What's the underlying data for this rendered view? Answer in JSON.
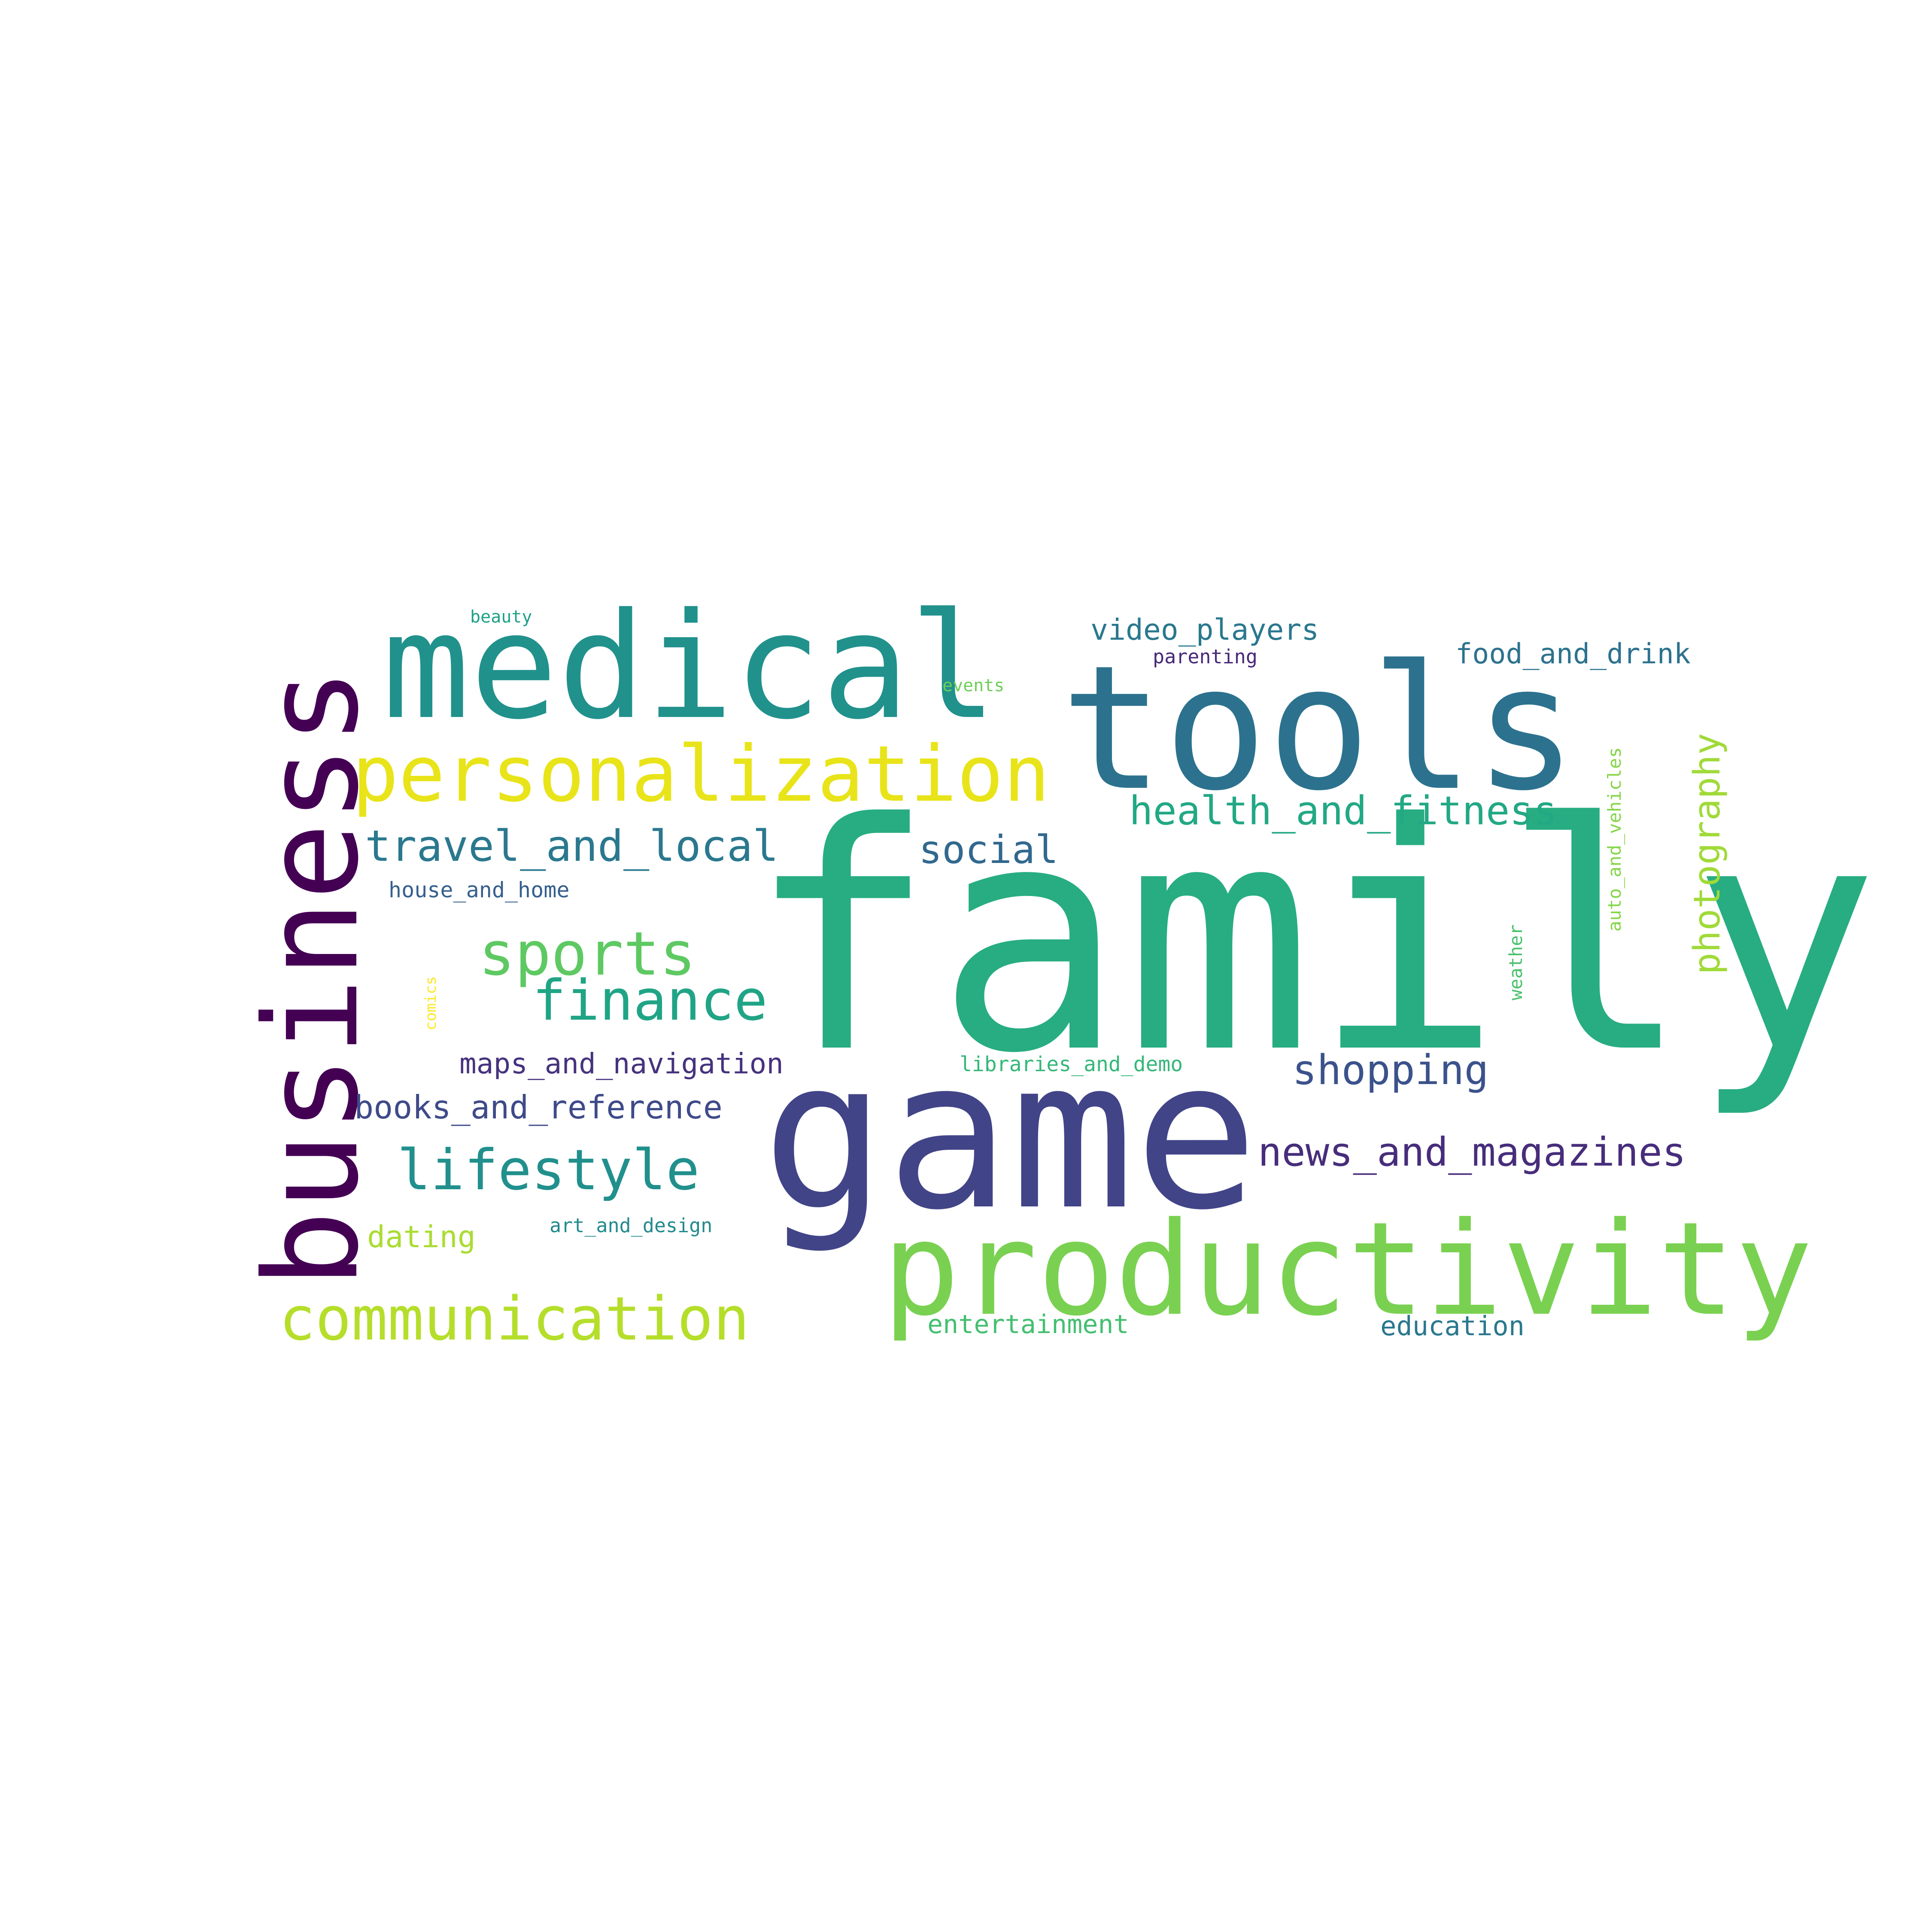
{
  "word_cloud": {
    "words": [
      {
        "text": "family",
        "color": "#27ad81"
      },
      {
        "text": "game",
        "color": "#414487"
      },
      {
        "text": "tools",
        "color": "#2c728e"
      },
      {
        "text": "business",
        "color": "#440154"
      },
      {
        "text": "medical",
        "color": "#21918c"
      },
      {
        "text": "productivity",
        "color": "#7ad151"
      },
      {
        "text": "personalization",
        "color": "#e8e419"
      },
      {
        "text": "communication",
        "color": "#b5de2b"
      },
      {
        "text": "lifestyle",
        "color": "#21908d"
      },
      {
        "text": "sports",
        "color": "#5ec962"
      },
      {
        "text": "finance",
        "color": "#20a486"
      },
      {
        "text": "health_and_fitness",
        "color": "#22a884"
      },
      {
        "text": "travel_and_local",
        "color": "#2a788e"
      },
      {
        "text": "social",
        "color": "#31688e"
      },
      {
        "text": "shopping",
        "color": "#3b528b"
      },
      {
        "text": "news_and_magazines",
        "color": "#472d7b"
      },
      {
        "text": "photography",
        "color": "#a0da39"
      },
      {
        "text": "books_and_reference",
        "color": "#3e4a89"
      },
      {
        "text": "maps_and_navigation",
        "color": "#46327e"
      },
      {
        "text": "video_players",
        "color": "#2a788e"
      },
      {
        "text": "food_and_drink",
        "color": "#2c728e"
      },
      {
        "text": "dating",
        "color": "#aadc32"
      },
      {
        "text": "house_and_home",
        "color": "#355f8d"
      },
      {
        "text": "entertainment",
        "color": "#44bf70"
      },
      {
        "text": "education",
        "color": "#2a788e"
      },
      {
        "text": "art_and_design",
        "color": "#238a8d"
      },
      {
        "text": "auto_and_vehicles",
        "color": "#86d549"
      },
      {
        "text": "libraries_and_demo",
        "color": "#35b779"
      },
      {
        "text": "weather",
        "color": "#4ac16d"
      },
      {
        "text": "parenting",
        "color": "#482878"
      },
      {
        "text": "beauty",
        "color": "#1fa187"
      },
      {
        "text": "events",
        "color": "#6ece58"
      },
      {
        "text": "comics",
        "color": "#fde725"
      }
    ]
  }
}
